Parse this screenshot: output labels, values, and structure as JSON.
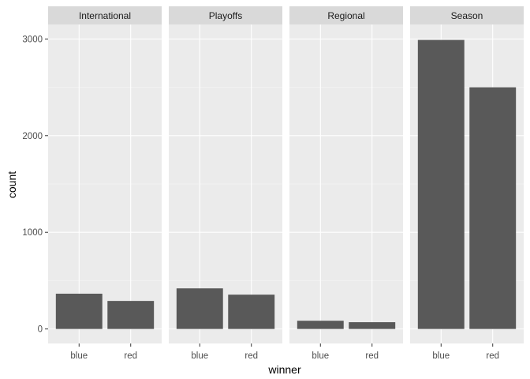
{
  "chart_data": {
    "type": "bar",
    "facet_by": "",
    "panels": [
      {
        "label": "International",
        "categories": [
          "blue",
          "red"
        ],
        "values": [
          365,
          290
        ]
      },
      {
        "label": "Playoffs",
        "categories": [
          "blue",
          "red"
        ],
        "values": [
          420,
          355
        ]
      },
      {
        "label": "Regional",
        "categories": [
          "blue",
          "red"
        ],
        "values": [
          85,
          70
        ]
      },
      {
        "label": "Season",
        "categories": [
          "blue",
          "red"
        ],
        "values": [
          2990,
          2500
        ]
      }
    ],
    "xlabel": "winner",
    "ylabel": "count",
    "ylim": [
      -150,
      3150
    ],
    "yticks": [
      0,
      1000,
      2000,
      3000
    ],
    "ytick_labels": [
      "0",
      "1000",
      "2000",
      "3000"
    ],
    "grid": true,
    "colors": {
      "bar": "#595959",
      "panel_background": "#ebebeb",
      "strip_background": "#d9d9d9",
      "grid_major": "#ffffff",
      "grid_minor": "#f5f5f5"
    }
  }
}
